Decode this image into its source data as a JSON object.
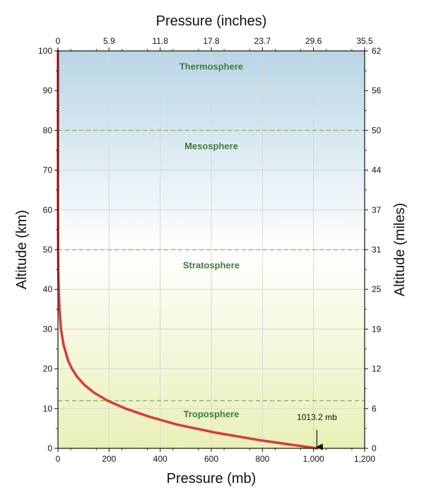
{
  "chart_data": {
    "type": "line",
    "title": "",
    "xlabel": "Pressure (mb)",
    "ylabel": "Altitude (km)",
    "x2label": "Pressure (inches)",
    "y2label": "Altitude (miles)",
    "xlim": [
      0,
      1200
    ],
    "ylim": [
      0,
      100
    ],
    "x_ticks": [
      {
        "value": 0,
        "label": "0"
      },
      {
        "value": 200,
        "label": "200"
      },
      {
        "value": 400,
        "label": "400"
      },
      {
        "value": 600,
        "label": "600"
      },
      {
        "value": 800,
        "label": "800"
      },
      {
        "value": 1000,
        "label": "1,000"
      },
      {
        "value": 1200,
        "label": "1,200"
      }
    ],
    "x2_ticks": [
      {
        "value": 0,
        "label": "0"
      },
      {
        "value": 200,
        "label": "5.9"
      },
      {
        "value": 400,
        "label": "11.8"
      },
      {
        "value": 600,
        "label": "17.8"
      },
      {
        "value": 800,
        "label": "23.7"
      },
      {
        "value": 1000,
        "label": "29.6"
      },
      {
        "value": 1200,
        "label": "35.5"
      }
    ],
    "y_ticks": [
      {
        "value": 0,
        "label": "0"
      },
      {
        "value": 10,
        "label": "10"
      },
      {
        "value": 20,
        "label": "20"
      },
      {
        "value": 30,
        "label": "30"
      },
      {
        "value": 40,
        "label": "40"
      },
      {
        "value": 50,
        "label": "50"
      },
      {
        "value": 60,
        "label": "60"
      },
      {
        "value": 70,
        "label": "70"
      },
      {
        "value": 80,
        "label": "80"
      },
      {
        "value": 90,
        "label": "90"
      },
      {
        "value": 100,
        "label": "100"
      }
    ],
    "y2_ticks": [
      {
        "value": 0,
        "label": "0"
      },
      {
        "value": 10,
        "label": "6"
      },
      {
        "value": 20,
        "label": "12"
      },
      {
        "value": 30,
        "label": "19"
      },
      {
        "value": 40,
        "label": "25"
      },
      {
        "value": 50,
        "label": "31"
      },
      {
        "value": 60,
        "label": "37"
      },
      {
        "value": 70,
        "label": "44"
      },
      {
        "value": 80,
        "label": "50"
      },
      {
        "value": 90,
        "label": "56"
      },
      {
        "value": 100,
        "label": "62"
      }
    ],
    "grid": true,
    "series": [
      {
        "color": "#d93a3a",
        "x": [
          1013.2,
          795,
          612,
          465,
          355,
          265,
          194,
          141,
          103,
          75,
          55,
          40,
          22,
          12,
          6,
          3,
          1.5,
          0.8,
          0.3,
          0.1,
          0.03
        ],
        "y": [
          0,
          2,
          4,
          6,
          8,
          10,
          12,
          14,
          16,
          18,
          20,
          22,
          26,
          30,
          35,
          40,
          45,
          50,
          60,
          70,
          100
        ]
      }
    ],
    "layers": [
      {
        "name": "Thermosphere",
        "label_y": 96
      },
      {
        "name": "Mesosphere",
        "label_y": 76
      },
      {
        "name": "Stratosphere",
        "label_y": 46
      },
      {
        "name": "Troposphere",
        "label_y": 8.5
      }
    ],
    "boundaries": [
      80,
      50,
      12
    ],
    "annotation": {
      "text": "1013.2 mb",
      "x": 1013.2,
      "y": 0
    },
    "colors": {
      "curve": "#d93a3a",
      "layer_text": "#3d7d3d",
      "boundary": "#7fb36a",
      "grid": "#d6d6d6",
      "bg_top": "#b9d6e6",
      "bg_mid": "#ffffff",
      "bg_bottom": "#e9f0b6"
    }
  }
}
